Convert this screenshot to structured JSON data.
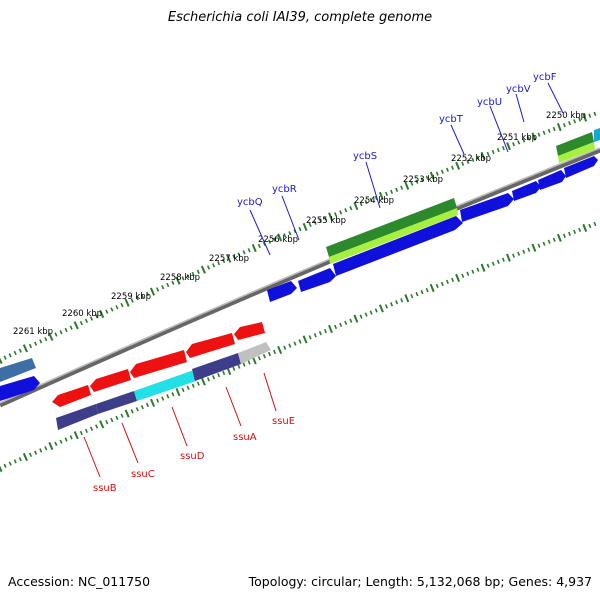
{
  "title": "Escherichia coli IAI39, complete genome",
  "footer": {
    "accession": "Accession: NC_011750",
    "stats": "Topology: circular; Length: 5,132,068 bp; Genes: 4,937"
  },
  "scale_labels": [
    "2250 kbp",
    "2251 kbp",
    "2252 kbp",
    "2253 kbp",
    "2254 kbp",
    "2255 kbp",
    "2256 kbp",
    "2257 kbp",
    "2258 kbp",
    "2259 kbp",
    "2260 kbp",
    "2261 kbp"
  ],
  "genes_top": [
    "ycbF",
    "ycbV",
    "ycbU",
    "ycbT",
    "ycbS",
    "ycbR",
    "ycbQ"
  ],
  "genes_bottom": [
    "ssuE",
    "ssuA",
    "ssuD",
    "ssuC",
    "ssuB"
  ],
  "colors": {
    "forward_blue": "#1010dd",
    "reverse_red": "#ee1111",
    "navy": "#3d3d8a",
    "cyan": "#22e0e6",
    "green_dark": "#2c8a2c",
    "green_light": "#a8f040",
    "backbone": "#8a8a8a",
    "tick_green": "#2a7a2a",
    "top_label": "#1a1acc",
    "bottom_label": "#cc1111"
  }
}
